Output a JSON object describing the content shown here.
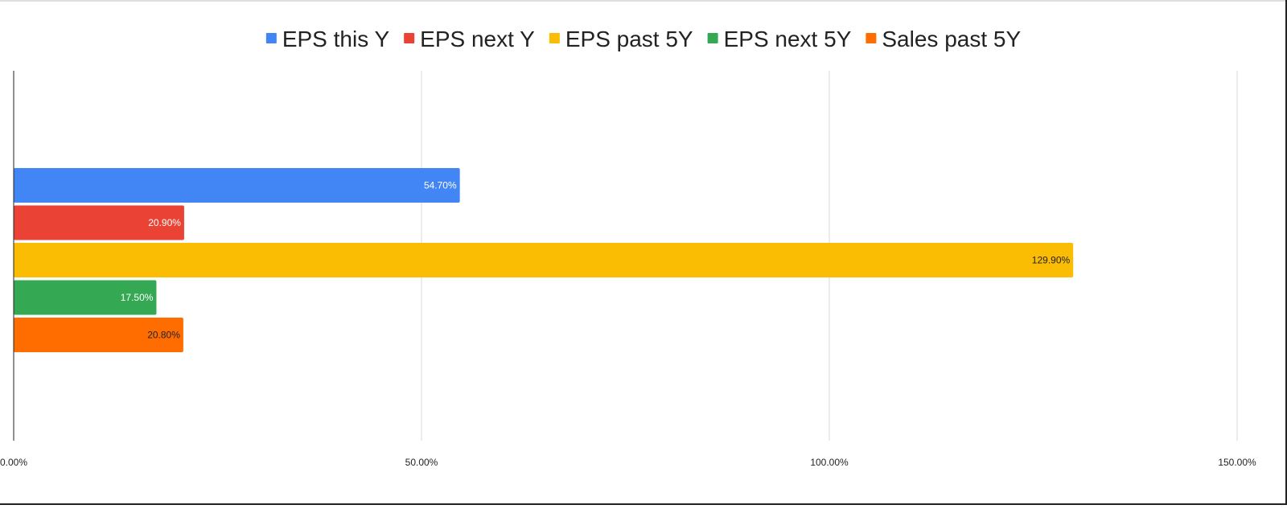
{
  "chart_data": {
    "type": "bar",
    "orientation": "horizontal",
    "title": "",
    "xlabel": "",
    "ylabel": "",
    "categories": [
      ""
    ],
    "series": [
      {
        "name": "EPS this Y",
        "values": [
          54.7
        ],
        "label": "54.70%",
        "color": "#4285F4",
        "label_color": "#ffffff"
      },
      {
        "name": "EPS next Y",
        "values": [
          20.9
        ],
        "label": "20.90%",
        "color": "#EA4335",
        "label_color": "#ffffff"
      },
      {
        "name": "EPS past 5Y",
        "values": [
          129.9
        ],
        "label": "129.90%",
        "color": "#FBBC04",
        "label_color": "#222222"
      },
      {
        "name": "EPS next 5Y",
        "values": [
          17.5
        ],
        "label": "17.50%",
        "color": "#34A853",
        "label_color": "#ffffff"
      },
      {
        "name": "Sales past 5Y",
        "values": [
          20.8
        ],
        "label": "20.80%",
        "color": "#FF6D01",
        "label_color": "#222222"
      }
    ],
    "xlim": [
      0,
      150
    ],
    "x_ticks": [
      {
        "value": 0,
        "label": "0.00%"
      },
      {
        "value": 50,
        "label": "50.00%"
      },
      {
        "value": 100,
        "label": "100.00%"
      },
      {
        "value": 150,
        "label": "150.00%"
      }
    ],
    "grid": true,
    "legend_position": "top"
  }
}
